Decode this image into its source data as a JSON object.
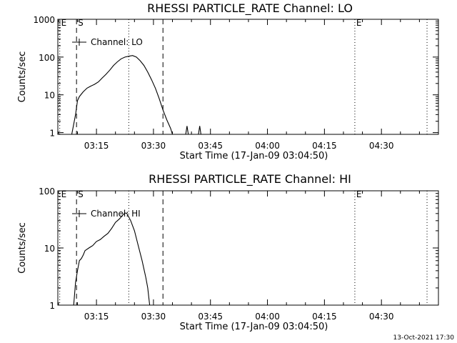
{
  "footer": {
    "timestamp": "13-Oct-2021 17:30"
  },
  "chart_data": [
    {
      "type": "line",
      "title": "RHESSI PARTICLE_RATE Channel: LO",
      "xlabel": "Start Time (17-Jan-09 03:04:50)",
      "ylabel": "Counts/sec",
      "yscale": "log",
      "xlim": [
        "03:04:50",
        "04:45:00"
      ],
      "ylim": [
        0.9,
        1000
      ],
      "xticks": [
        "03:15",
        "03:30",
        "03:45",
        "04:00",
        "04:15",
        "04:30"
      ],
      "yticks": [
        "1",
        "10",
        "100",
        "1000"
      ],
      "legend": {
        "label": "Channel: LO",
        "placement": "top-left"
      },
      "markers": [
        {
          "time": "03:05:20",
          "style": "dotted",
          "label": "E"
        },
        {
          "time": "03:09:45",
          "style": "dashed",
          "label": "S"
        },
        {
          "time": "03:23:30",
          "style": "dotted",
          "label": ""
        },
        {
          "time": "03:32:30",
          "style": "dashed",
          "label": ""
        },
        {
          "time": "04:23:00",
          "style": "dotted",
          "label": "E"
        },
        {
          "time": "04:42:00",
          "style": "dotted",
          "label": ""
        }
      ],
      "series": [
        {
          "name": "Channel: LO",
          "x": [
            "03:08:30",
            "03:09:30",
            "03:10:00",
            "03:10:30",
            "03:11:30",
            "03:12:30",
            "03:13:30",
            "03:14:30",
            "03:15:30",
            "03:16:30",
            "03:17:30",
            "03:18:30",
            "03:19:30",
            "03:20:30",
            "03:21:30",
            "03:22:30",
            "03:23:30",
            "03:24:30",
            "03:25:30",
            "03:26:30",
            "03:27:30",
            "03:28:30",
            "03:29:30",
            "03:30:30",
            "03:31:30",
            "03:32:30",
            "03:33:30",
            "03:34:30",
            "03:35:00"
          ],
          "y": [
            0.9,
            3,
            7,
            9,
            12,
            15,
            17,
            19,
            22,
            28,
            35,
            45,
            60,
            75,
            90,
            100,
            105,
            110,
            100,
            80,
            60,
            40,
            25,
            15,
            8,
            4,
            2.2,
            1.3,
            0.9
          ]
        },
        {
          "name": "",
          "x": [
            "03:38:30",
            "03:38:50",
            "03:39:10",
            "03:41:50",
            "03:42:10",
            "03:42:30"
          ],
          "y": [
            0.9,
            1.5,
            0.9,
            0.9,
            1.5,
            0.9
          ]
        }
      ]
    },
    {
      "type": "line",
      "title": "RHESSI PARTICLE_RATE Channel: HI",
      "xlabel": "Start Time (17-Jan-09 03:04:50)",
      "ylabel": "Counts/sec",
      "yscale": "log",
      "xlim": [
        "03:04:50",
        "04:45:00"
      ],
      "ylim": [
        1,
        100
      ],
      "xticks": [
        "03:15",
        "03:30",
        "03:45",
        "04:00",
        "04:15",
        "04:30"
      ],
      "yticks": [
        "1",
        "10",
        "100"
      ],
      "legend": {
        "label": "Channel: HI",
        "placement": "top-left"
      },
      "markers": [
        {
          "time": "03:05:20",
          "style": "dotted",
          "label": "E"
        },
        {
          "time": "03:09:45",
          "style": "dashed",
          "label": "S"
        },
        {
          "time": "03:23:30",
          "style": "dotted",
          "label": ""
        },
        {
          "time": "03:32:30",
          "style": "dashed",
          "label": ""
        },
        {
          "time": "04:23:00",
          "style": "dotted",
          "label": "E"
        },
        {
          "time": "04:42:00",
          "style": "dotted",
          "label": ""
        }
      ],
      "series": [
        {
          "name": "Channel: HI",
          "x": [
            "03:09:00",
            "03:09:30",
            "03:10:00",
            "03:10:30",
            "03:11:00",
            "03:11:30",
            "03:12:00",
            "03:13:00",
            "03:14:00",
            "03:15:00",
            "03:16:00",
            "03:17:00",
            "03:18:00",
            "03:19:00",
            "03:20:00",
            "03:21:00",
            "03:22:00",
            "03:22:30",
            "03:23:00",
            "03:24:00",
            "03:25:00",
            "03:26:00",
            "03:27:00",
            "03:28:00",
            "03:28:30",
            "03:29:00"
          ],
          "y": [
            1,
            2.5,
            4,
            6,
            6.5,
            7.5,
            9,
            10,
            11,
            13,
            14,
            16,
            18,
            22,
            28,
            32,
            38,
            41,
            40,
            30,
            20,
            11,
            6,
            3,
            2,
            1
          ]
        }
      ]
    }
  ]
}
